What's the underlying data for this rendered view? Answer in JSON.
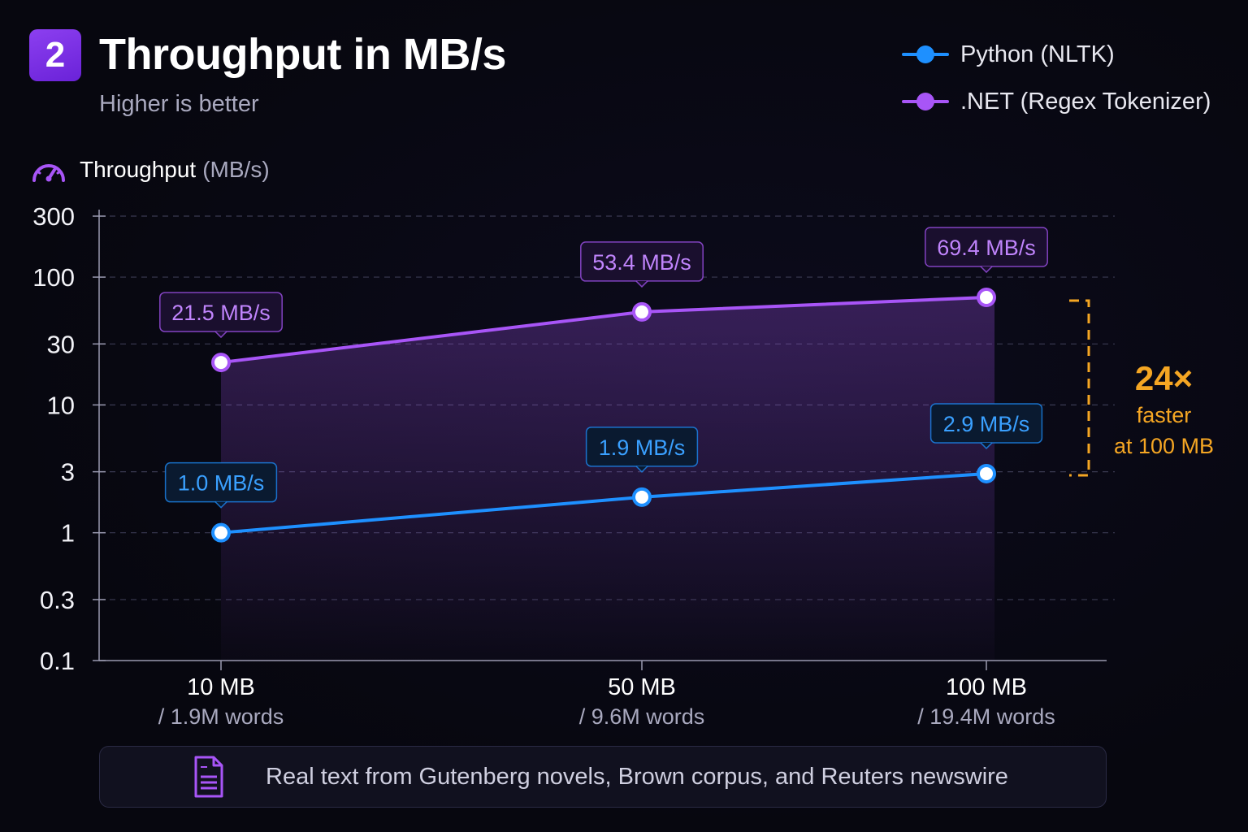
{
  "header": {
    "badge": "2",
    "title": "Throughput in MB/s",
    "subtitle": "Higher is better"
  },
  "axis_title": {
    "main": "Throughput",
    "unit": "(MB/s)",
    "icon": "speedometer-icon"
  },
  "legend": [
    {
      "label": "Python (NLTK)",
      "color": "#1e90ff"
    },
    {
      "label": ".NET (Regex Tokenizer)",
      "color": "#a855f7"
    }
  ],
  "callout": {
    "multiplier": "24×",
    "line1": "faster",
    "line2": "at 100 MB",
    "color": "#f5a623"
  },
  "footer": {
    "icon": "document-icon",
    "text": "Real text  from Gutenberg novels, Brown corpus, and Reuters newswire"
  },
  "colors": {
    "python": "#1e90ff",
    "dotnet": "#a855f7",
    "accent": "#f5a623",
    "background": "#07070f"
  },
  "chart_data": {
    "type": "line",
    "y_scale": "log",
    "ylim": [
      0.1,
      300
    ],
    "yticks": [
      "300",
      "100",
      "30",
      "10",
      "3",
      "1",
      "0.3",
      "0.1"
    ],
    "ytick_values": [
      300,
      100,
      30,
      10,
      3,
      1,
      0.3,
      0.1
    ],
    "grid": true,
    "legend_position": "top-right",
    "categories": [
      "10 MB",
      "50 MB",
      "100 MB"
    ],
    "category_sublabels": [
      "/ 1.9M words",
      "/ 9.6M words",
      "/ 19.4M words"
    ],
    "series": [
      {
        "name": ".NET (Regex Tokenizer)",
        "color": "#a855f7",
        "values": [
          21.5,
          53.4,
          69.4
        ],
        "labels": [
          "21.5 MB/s",
          "53.4 MB/s",
          "69.4 MB/s"
        ]
      },
      {
        "name": "Python (NLTK)",
        "color": "#1e90ff",
        "values": [
          1.0,
          1.9,
          2.9
        ],
        "labels": [
          "1.0 MB/s",
          "1.9 MB/s",
          "2.9 MB/s"
        ]
      }
    ]
  }
}
